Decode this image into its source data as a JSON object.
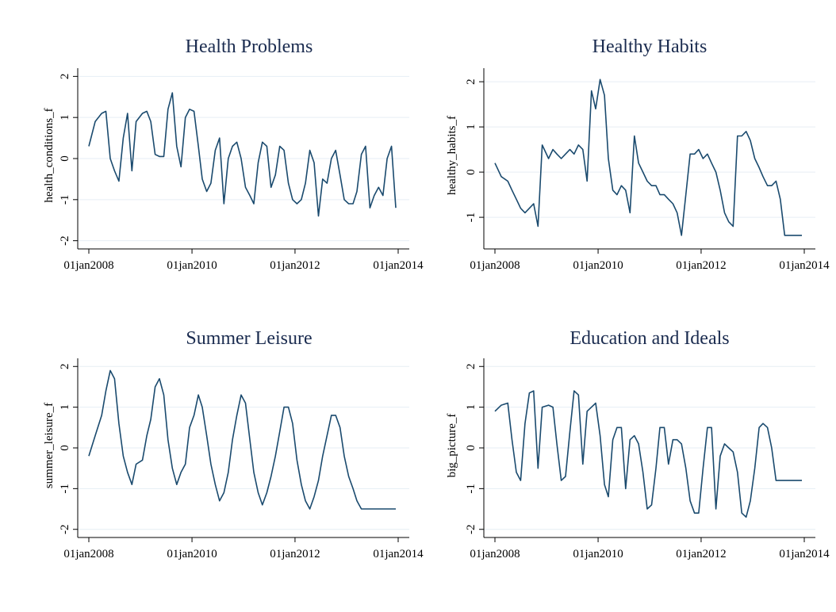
{
  "colors": {
    "series": "#1a4a6e",
    "title": "#1a2b4f",
    "grid": "#e6eef4"
  },
  "chart_data": [
    {
      "type": "line",
      "title": "Health Problems",
      "ylabel": "health_conditions_f",
      "xlabel": "",
      "x_ticks": [
        "01jan2008",
        "01jan2010",
        "01jan2012",
        "01jan2014"
      ],
      "y_ticks": [
        "-2",
        "-1",
        "0",
        "1",
        "2"
      ],
      "xlim": [
        "2008-01-01",
        "2014-01-01"
      ],
      "ylim": [
        -2.2,
        2.2
      ],
      "grid": true,
      "series": [
        {
          "x": [
            "2008-01-01",
            "2008-02-15",
            "2008-04-01",
            "2008-05-01",
            "2008-06-01",
            "2008-07-01",
            "2008-08-01",
            "2008-09-01",
            "2008-10-01",
            "2008-11-01",
            "2008-12-01",
            "2009-01-15",
            "2009-02-15",
            "2009-03-15",
            "2009-04-15",
            "2009-05-15",
            "2009-06-15",
            "2009-07-15",
            "2009-08-15",
            "2009-09-15",
            "2009-10-15",
            "2009-11-15",
            "2009-12-15",
            "2010-01-15",
            "2010-02-15",
            "2010-03-15",
            "2010-04-15",
            "2010-05-15",
            "2010-06-15",
            "2010-07-15",
            "2010-08-15",
            "2010-09-15",
            "2010-10-15",
            "2010-11-15",
            "2010-12-15",
            "2011-01-15",
            "2011-02-15",
            "2011-03-15",
            "2011-04-15",
            "2011-05-15",
            "2011-06-15",
            "2011-07-15",
            "2011-08-15",
            "2011-09-15",
            "2011-10-15",
            "2011-11-15",
            "2011-12-15",
            "2012-01-15",
            "2012-02-15",
            "2012-03-15",
            "2012-04-15",
            "2012-05-15",
            "2012-06-15",
            "2012-07-15",
            "2012-08-15",
            "2012-09-15",
            "2012-10-15",
            "2012-11-15",
            "2012-12-15",
            "2013-01-15",
            "2013-02-15",
            "2013-03-15",
            "2013-04-15",
            "2013-05-15",
            "2013-06-15",
            "2013-07-15",
            "2013-08-15",
            "2013-09-15",
            "2013-10-15",
            "2013-11-15",
            "2013-12-15"
          ],
          "y": [
            0.3,
            0.9,
            1.1,
            1.15,
            0.0,
            -0.3,
            -0.55,
            0.5,
            1.1,
            -0.3,
            0.9,
            1.1,
            1.15,
            0.9,
            0.1,
            0.05,
            0.05,
            1.2,
            1.6,
            0.3,
            -0.2,
            1.0,
            1.2,
            1.15,
            0.3,
            -0.5,
            -0.8,
            -0.6,
            0.2,
            0.5,
            -1.1,
            0.0,
            0.3,
            0.4,
            0.0,
            -0.7,
            -0.9,
            -1.1,
            -0.1,
            0.4,
            0.3,
            -0.7,
            -0.4,
            0.3,
            0.2,
            -0.6,
            -1.0,
            -1.1,
            -1.0,
            -0.6,
            0.2,
            -0.1,
            -1.4,
            -0.5,
            -0.6,
            0.0,
            0.2,
            -0.4,
            -1.0,
            -1.1,
            -1.1,
            -0.8,
            0.1,
            0.3,
            -1.2,
            -0.9,
            -0.7,
            -0.9,
            0.0,
            0.3,
            -1.2
          ]
        }
      ]
    },
    {
      "type": "line",
      "title": "Healthy Habits",
      "ylabel": "healthy_habits_f",
      "xlabel": "",
      "x_ticks": [
        "01jan2008",
        "01jan2010",
        "01jan2012",
        "01jan2014"
      ],
      "y_ticks": [
        "-1",
        "0",
        "1",
        "2"
      ],
      "xlim": [
        "2008-01-01",
        "2014-01-01"
      ],
      "ylim": [
        -1.7,
        2.3
      ],
      "grid": true,
      "series": [
        {
          "x": [
            "2008-01-01",
            "2008-02-15",
            "2008-04-01",
            "2008-05-01",
            "2008-06-01",
            "2008-07-01",
            "2008-08-01",
            "2008-09-01",
            "2008-10-01",
            "2008-11-01",
            "2008-12-01",
            "2009-01-15",
            "2009-02-15",
            "2009-03-15",
            "2009-04-15",
            "2009-05-15",
            "2009-06-15",
            "2009-07-15",
            "2009-08-15",
            "2009-09-15",
            "2009-10-15",
            "2009-11-15",
            "2009-12-15",
            "2010-01-15",
            "2010-02-15",
            "2010-03-15",
            "2010-04-15",
            "2010-05-15",
            "2010-06-15",
            "2010-07-15",
            "2010-08-15",
            "2010-09-15",
            "2010-10-15",
            "2010-11-15",
            "2010-12-15",
            "2011-01-15",
            "2011-02-15",
            "2011-03-15",
            "2011-04-15",
            "2011-05-15",
            "2011-06-15",
            "2011-07-15",
            "2011-08-15",
            "2011-09-15",
            "2011-10-15",
            "2011-11-15",
            "2011-12-15",
            "2012-01-15",
            "2012-02-15",
            "2012-03-15",
            "2012-04-15",
            "2012-05-15",
            "2012-06-15",
            "2012-07-15",
            "2012-08-15",
            "2012-09-15",
            "2012-10-15",
            "2012-11-15",
            "2012-12-15",
            "2013-01-15",
            "2013-02-15",
            "2013-03-15",
            "2013-04-15",
            "2013-05-15",
            "2013-06-15",
            "2013-07-15",
            "2013-08-15",
            "2013-09-15",
            "2013-10-15",
            "2013-11-15",
            "2013-12-15"
          ],
          "y": [
            0.2,
            -0.1,
            -0.2,
            -0.4,
            -0.6,
            -0.8,
            -0.9,
            -0.8,
            -0.7,
            -1.2,
            0.6,
            0.3,
            0.5,
            0.4,
            0.3,
            0.4,
            0.5,
            0.4,
            0.6,
            0.5,
            -0.2,
            1.8,
            1.4,
            2.05,
            1.7,
            0.3,
            -0.4,
            -0.5,
            -0.3,
            -0.4,
            -0.9,
            0.8,
            0.2,
            0.0,
            -0.2,
            -0.3,
            -0.3,
            -0.5,
            -0.5,
            -0.6,
            -0.7,
            -0.9,
            -1.4,
            -0.5,
            0.4,
            0.4,
            0.5,
            0.3,
            0.4,
            0.2,
            0.0,
            -0.4,
            -0.9,
            -1.1,
            -1.2,
            0.8,
            0.8,
            0.9,
            0.7,
            0.3,
            0.1,
            -0.1,
            -0.3,
            -0.3,
            -0.2,
            -0.6,
            -1.4,
            -1.4,
            -1.4,
            -1.4,
            -1.4
          ]
        }
      ]
    },
    {
      "type": "line",
      "title": "Summer Leisure",
      "ylabel": "summer_leisure_f",
      "xlabel": "",
      "x_ticks": [
        "01jan2008",
        "01jan2010",
        "01jan2012",
        "01jan2014"
      ],
      "y_ticks": [
        "-2",
        "-1",
        "0",
        "1",
        "2"
      ],
      "xlim": [
        "2008-01-01",
        "2014-01-01"
      ],
      "ylim": [
        -2.2,
        2.2
      ],
      "grid": true,
      "series": [
        {
          "x": [
            "2008-01-01",
            "2008-02-15",
            "2008-04-01",
            "2008-05-01",
            "2008-06-01",
            "2008-07-01",
            "2008-08-01",
            "2008-09-01",
            "2008-10-01",
            "2008-11-01",
            "2008-12-01",
            "2009-01-15",
            "2009-02-15",
            "2009-03-15",
            "2009-04-15",
            "2009-05-15",
            "2009-06-15",
            "2009-07-15",
            "2009-08-15",
            "2009-09-15",
            "2009-10-15",
            "2009-11-15",
            "2009-12-15",
            "2010-01-15",
            "2010-02-15",
            "2010-03-15",
            "2010-04-15",
            "2010-05-15",
            "2010-06-15",
            "2010-07-15",
            "2010-08-15",
            "2010-09-15",
            "2010-10-15",
            "2010-11-15",
            "2010-12-15",
            "2011-01-15",
            "2011-02-15",
            "2011-03-15",
            "2011-04-15",
            "2011-05-15",
            "2011-06-15",
            "2011-07-15",
            "2011-08-15",
            "2011-09-15",
            "2011-10-15",
            "2011-11-15",
            "2011-12-15",
            "2012-01-15",
            "2012-02-15",
            "2012-03-15",
            "2012-04-15",
            "2012-05-15",
            "2012-06-15",
            "2012-07-15",
            "2012-08-15",
            "2012-09-15",
            "2012-10-15",
            "2012-11-15",
            "2012-12-15",
            "2013-01-15",
            "2013-02-15",
            "2013-03-15",
            "2013-04-15",
            "2013-05-15",
            "2013-06-15",
            "2013-07-15",
            "2013-08-15",
            "2013-09-15",
            "2013-10-15",
            "2013-11-15",
            "2013-12-15"
          ],
          "y": [
            -0.2,
            0.3,
            0.8,
            1.4,
            1.9,
            1.7,
            0.6,
            -0.2,
            -0.6,
            -0.9,
            -0.4,
            -0.3,
            0.3,
            0.7,
            1.5,
            1.7,
            1.3,
            0.2,
            -0.5,
            -0.9,
            -0.6,
            -0.4,
            0.5,
            0.8,
            1.3,
            1.0,
            0.3,
            -0.4,
            -0.9,
            -1.3,
            -1.1,
            -0.6,
            0.2,
            0.8,
            1.3,
            1.1,
            0.2,
            -0.6,
            -1.1,
            -1.4,
            -1.1,
            -0.7,
            -0.2,
            0.4,
            1.0,
            1.0,
            0.6,
            -0.3,
            -0.9,
            -1.3,
            -1.5,
            -1.2,
            -0.8,
            -0.2,
            0.3,
            0.8,
            0.8,
            0.5,
            -0.2,
            -0.7,
            -1.0,
            -1.3,
            -1.5,
            -1.5,
            -1.5,
            -1.5,
            -1.5,
            -1.5,
            -1.5,
            -1.5,
            -1.5
          ]
        }
      ]
    },
    {
      "type": "line",
      "title": "Education and Ideals",
      "ylabel": "big_picture_f",
      "xlabel": "",
      "x_ticks": [
        "01jan2008",
        "01jan2010",
        "01jan2012",
        "01jan2014"
      ],
      "y_ticks": [
        "-2",
        "-1",
        "0",
        "1",
        "2"
      ],
      "xlim": [
        "2008-01-01",
        "2014-01-01"
      ],
      "ylim": [
        -2.2,
        2.2
      ],
      "grid": true,
      "series": [
        {
          "x": [
            "2008-01-01",
            "2008-02-15",
            "2008-04-01",
            "2008-05-01",
            "2008-06-01",
            "2008-07-01",
            "2008-08-01",
            "2008-09-01",
            "2008-10-01",
            "2008-11-01",
            "2008-12-01",
            "2009-01-15",
            "2009-02-15",
            "2009-03-15",
            "2009-04-15",
            "2009-05-15",
            "2009-06-15",
            "2009-07-15",
            "2009-08-15",
            "2009-09-15",
            "2009-10-15",
            "2009-11-15",
            "2009-12-15",
            "2010-01-15",
            "2010-02-15",
            "2010-03-15",
            "2010-04-15",
            "2010-05-15",
            "2010-06-15",
            "2010-07-15",
            "2010-08-15",
            "2010-09-15",
            "2010-10-15",
            "2010-11-15",
            "2010-12-15",
            "2011-01-15",
            "2011-02-15",
            "2011-03-15",
            "2011-04-15",
            "2011-05-15",
            "2011-06-15",
            "2011-07-15",
            "2011-08-15",
            "2011-09-15",
            "2011-10-15",
            "2011-11-15",
            "2011-12-15",
            "2012-01-15",
            "2012-02-15",
            "2012-03-15",
            "2012-04-15",
            "2012-05-15",
            "2012-06-15",
            "2012-07-15",
            "2012-08-15",
            "2012-09-15",
            "2012-10-15",
            "2012-11-15",
            "2012-12-15",
            "2013-01-15",
            "2013-02-15",
            "2013-03-15",
            "2013-04-15",
            "2013-05-15",
            "2013-06-15",
            "2013-07-15",
            "2013-08-15",
            "2013-09-15",
            "2013-10-15",
            "2013-11-15",
            "2013-12-15"
          ],
          "y": [
            0.9,
            1.05,
            1.1,
            0.2,
            -0.6,
            -0.8,
            0.6,
            1.35,
            1.4,
            -0.5,
            1.0,
            1.05,
            1.0,
            0.1,
            -0.8,
            -0.7,
            0.4,
            1.4,
            1.3,
            -0.4,
            0.9,
            1.0,
            1.1,
            0.3,
            -0.9,
            -1.2,
            0.2,
            0.5,
            0.5,
            -1.0,
            0.2,
            0.3,
            0.1,
            -0.6,
            -1.5,
            -1.4,
            -0.5,
            0.5,
            0.5,
            -0.4,
            0.2,
            0.2,
            0.1,
            -0.5,
            -1.3,
            -1.6,
            -1.6,
            -0.5,
            0.5,
            0.5,
            -1.5,
            -0.2,
            0.1,
            0.0,
            -0.1,
            -0.6,
            -1.6,
            -1.7,
            -1.3,
            -0.5,
            0.5,
            0.6,
            0.5,
            0.0,
            -0.8,
            -0.8,
            -0.8,
            -0.8,
            -0.8,
            -0.8,
            -0.8
          ]
        }
      ]
    }
  ]
}
